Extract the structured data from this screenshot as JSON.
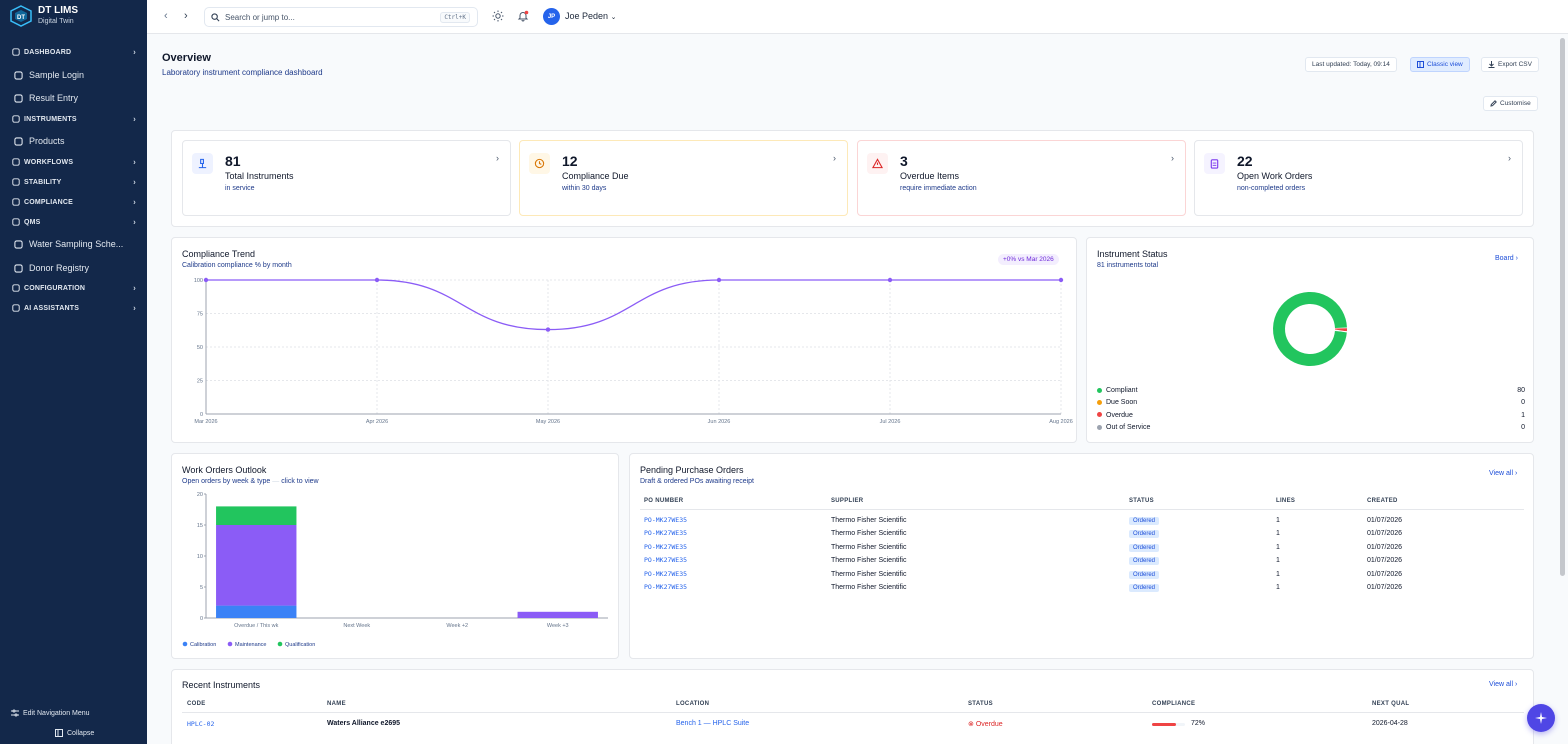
{
  "brand": {
    "name": "DT LIMS",
    "sub": "Digital Twin"
  },
  "sidebar": {
    "items": [
      {
        "label": "DASHBOARD",
        "kind": "section",
        "icon": "grid-icon"
      },
      {
        "label": "Sample Login",
        "kind": "link",
        "icon": "flask-icon"
      },
      {
        "label": "Result Entry",
        "kind": "link",
        "icon": "clipboard-icon"
      },
      {
        "label": "INSTRUMENTS",
        "kind": "section",
        "icon": "microscope-icon"
      },
      {
        "label": "Products",
        "kind": "link",
        "icon": "box-icon"
      },
      {
        "label": "WORKFLOWS",
        "kind": "section",
        "icon": "workflow-icon"
      },
      {
        "label": "STABILITY",
        "kind": "section",
        "icon": "flask-icon"
      },
      {
        "label": "COMPLIANCE",
        "kind": "section",
        "icon": "shield-icon"
      },
      {
        "label": "QMS",
        "kind": "section",
        "icon": "badge-icon"
      },
      {
        "label": "Water Sampling Sche...",
        "kind": "link",
        "icon": "calendar-icon"
      },
      {
        "label": "Donor Registry",
        "kind": "link",
        "icon": "syringe-icon"
      },
      {
        "label": "CONFIGURATION",
        "kind": "section",
        "icon": "gear-icon"
      },
      {
        "label": "AI ASSISTANTS",
        "kind": "section",
        "icon": "bot-icon"
      }
    ],
    "edit_menu": "Edit Navigation Menu",
    "collapse": "Collapse"
  },
  "topbar": {
    "search_placeholder": "Search or jump to...",
    "shortcut": "Ctrl+K",
    "user_initials": "JP",
    "user_name": "Joe Peden"
  },
  "page": {
    "title": "Overview",
    "subtitle": "Laboratory instrument compliance dashboard",
    "last_updated": "Last updated: Today, 09:14",
    "classic_view": "Classic view",
    "export_csv": "Export CSV",
    "customise": "Customise"
  },
  "kpis": [
    {
      "value": "81",
      "label": "Total Instruments",
      "sub": "in service",
      "icon": "microscope-icon",
      "color": "#2563eb"
    },
    {
      "value": "12",
      "label": "Compliance Due",
      "sub": "within 30 days",
      "icon": "clock-icon",
      "color": "#d97706"
    },
    {
      "value": "3",
      "label": "Overdue Items",
      "sub": "require immediate action",
      "icon": "alert-triangle-icon",
      "color": "#dc2626"
    },
    {
      "value": "22",
      "label": "Open Work Orders",
      "sub": "non-completed orders",
      "icon": "clipboard-list-icon",
      "color": "#7c3aed"
    }
  ],
  "trend": {
    "title": "Compliance Trend",
    "subtitle": "Calibration compliance % by month",
    "pill": "+0% vs Mar 2026"
  },
  "status": {
    "title": "Instrument Status",
    "subtitle": "81 instruments total",
    "board_link": "Board",
    "legend": [
      {
        "label": "Compliant",
        "value": "80",
        "color": "#22c55e"
      },
      {
        "label": "Due Soon",
        "value": "0",
        "color": "#f59e0b"
      },
      {
        "label": "Overdue",
        "value": "1",
        "color": "#ef4444"
      },
      {
        "label": "Out of Service",
        "value": "0",
        "color": "#9ca3af"
      }
    ]
  },
  "workorders": {
    "title": "Work Orders Outlook",
    "subtitle_a": "Open orders by week & type",
    "subtitle_sep": "—",
    "subtitle_b": "click to view"
  },
  "purchase": {
    "title": "Pending Purchase Orders",
    "subtitle": "Draft & ordered POs awaiting receipt",
    "view_all": "View all",
    "headers": [
      "PO NUMBER",
      "SUPPLIER",
      "STATUS",
      "LINES",
      "CREATED"
    ],
    "rows": [
      {
        "po": "PO-MK27WE35",
        "supplier": "Thermo Fisher Scientific",
        "status": "Ordered",
        "lines": "1",
        "created": "01/07/2026"
      },
      {
        "po": "PO-MK27WE35",
        "supplier": "Thermo Fisher Scientific",
        "status": "Ordered",
        "lines": "1",
        "created": "01/07/2026"
      },
      {
        "po": "PO-MK27WE35",
        "supplier": "Thermo Fisher Scientific",
        "status": "Ordered",
        "lines": "1",
        "created": "01/07/2026"
      },
      {
        "po": "PO-MK27WE35",
        "supplier": "Thermo Fisher Scientific",
        "status": "Ordered",
        "lines": "1",
        "created": "01/07/2026"
      },
      {
        "po": "PO-MK27WE35",
        "supplier": "Thermo Fisher Scientific",
        "status": "Ordered",
        "lines": "1",
        "created": "01/07/2026"
      },
      {
        "po": "PO-MK27WE35",
        "supplier": "Thermo Fisher Scientific",
        "status": "Ordered",
        "lines": "1",
        "created": "01/07/2026"
      }
    ]
  },
  "recent": {
    "title": "Recent Instruments",
    "view_all": "View all",
    "headers": [
      "CODE",
      "NAME",
      "LOCATION",
      "STATUS",
      "COMPLIANCE",
      "NEXT QUAL"
    ],
    "rows": [
      {
        "code": "HPLC-02",
        "name": "Waters Alliance e2695",
        "location": "Bench 1 — HPLC Suite",
        "status": "Overdue",
        "compliance": "72%",
        "compliance_value": 0.72,
        "next_qual": "2026-04-28"
      }
    ]
  },
  "chart_data": [
    {
      "type": "line",
      "title": "Compliance Trend",
      "x": [
        "Mar 2026",
        "Apr 2026",
        "May 2026",
        "Jun 2026",
        "Jul 2026",
        "Aug 2026"
      ],
      "series": [
        {
          "values": [
            100,
            100,
            63,
            100,
            100,
            100
          ]
        }
      ],
      "yticks": [
        0,
        25,
        50,
        75,
        100
      ],
      "ylim": [
        0,
        100
      ],
      "grid": true,
      "color": "#8b5cf6"
    },
    {
      "type": "pie",
      "title": "Instrument Status",
      "labels": [
        "Compliant",
        "Due Soon",
        "Overdue",
        "Out of Service"
      ],
      "values": [
        80,
        0,
        1,
        0
      ],
      "colors": [
        "#22c55e",
        "#f59e0b",
        "#ef4444",
        "#9ca3af"
      ]
    },
    {
      "type": "bar",
      "stacked": true,
      "title": "Work Orders Outlook",
      "categories": [
        "Overdue / This wk",
        "Next Week",
        "Week +2",
        "Week +3"
      ],
      "series": [
        {
          "name": "Calibration",
          "values": [
            2,
            0,
            0,
            0
          ],
          "color": "#3b82f6"
        },
        {
          "name": "Maintenance",
          "values": [
            13,
            0,
            0,
            1
          ],
          "color": "#8b5cf6"
        },
        {
          "name": "Qualification",
          "values": [
            3,
            0,
            0,
            0
          ],
          "color": "#22c55e"
        }
      ],
      "yticks": [
        0,
        5,
        10,
        15,
        20
      ],
      "ylim": [
        0,
        20
      ],
      "legend": "bottom-left"
    }
  ]
}
